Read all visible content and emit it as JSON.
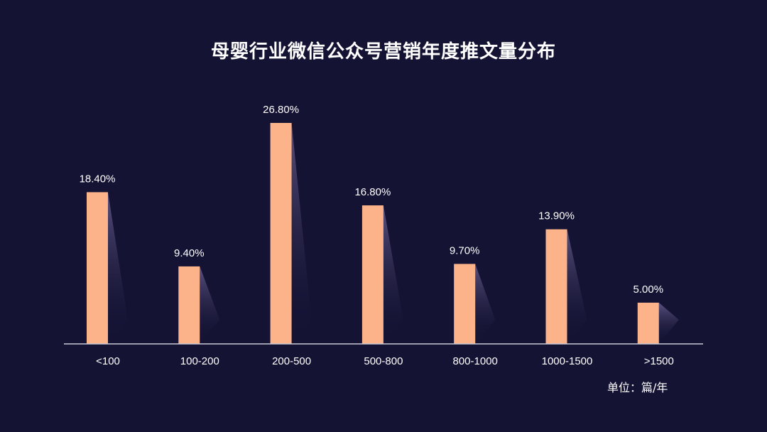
{
  "chart_data": {
    "type": "bar",
    "title": "母婴行业微信公众号营销年度推文量分布",
    "categories": [
      "<100",
      "100-200",
      "200-500",
      "500-800",
      "800-1000",
      "1000-1500",
      ">1500"
    ],
    "values": [
      18.4,
      9.4,
      26.8,
      16.8,
      9.7,
      13.9,
      5.0
    ],
    "value_labels": [
      "18.40%",
      "9.40%",
      "26.80%",
      "16.80%",
      "9.70%",
      "13.90%",
      "5.00%"
    ],
    "ylim": [
      0,
      30
    ],
    "grid": false,
    "unit": "单位：篇/年"
  },
  "colors": {
    "background": "#141334",
    "bar": "#FDB38A",
    "axis": "#C9C9D6",
    "text": "#ffffff"
  }
}
